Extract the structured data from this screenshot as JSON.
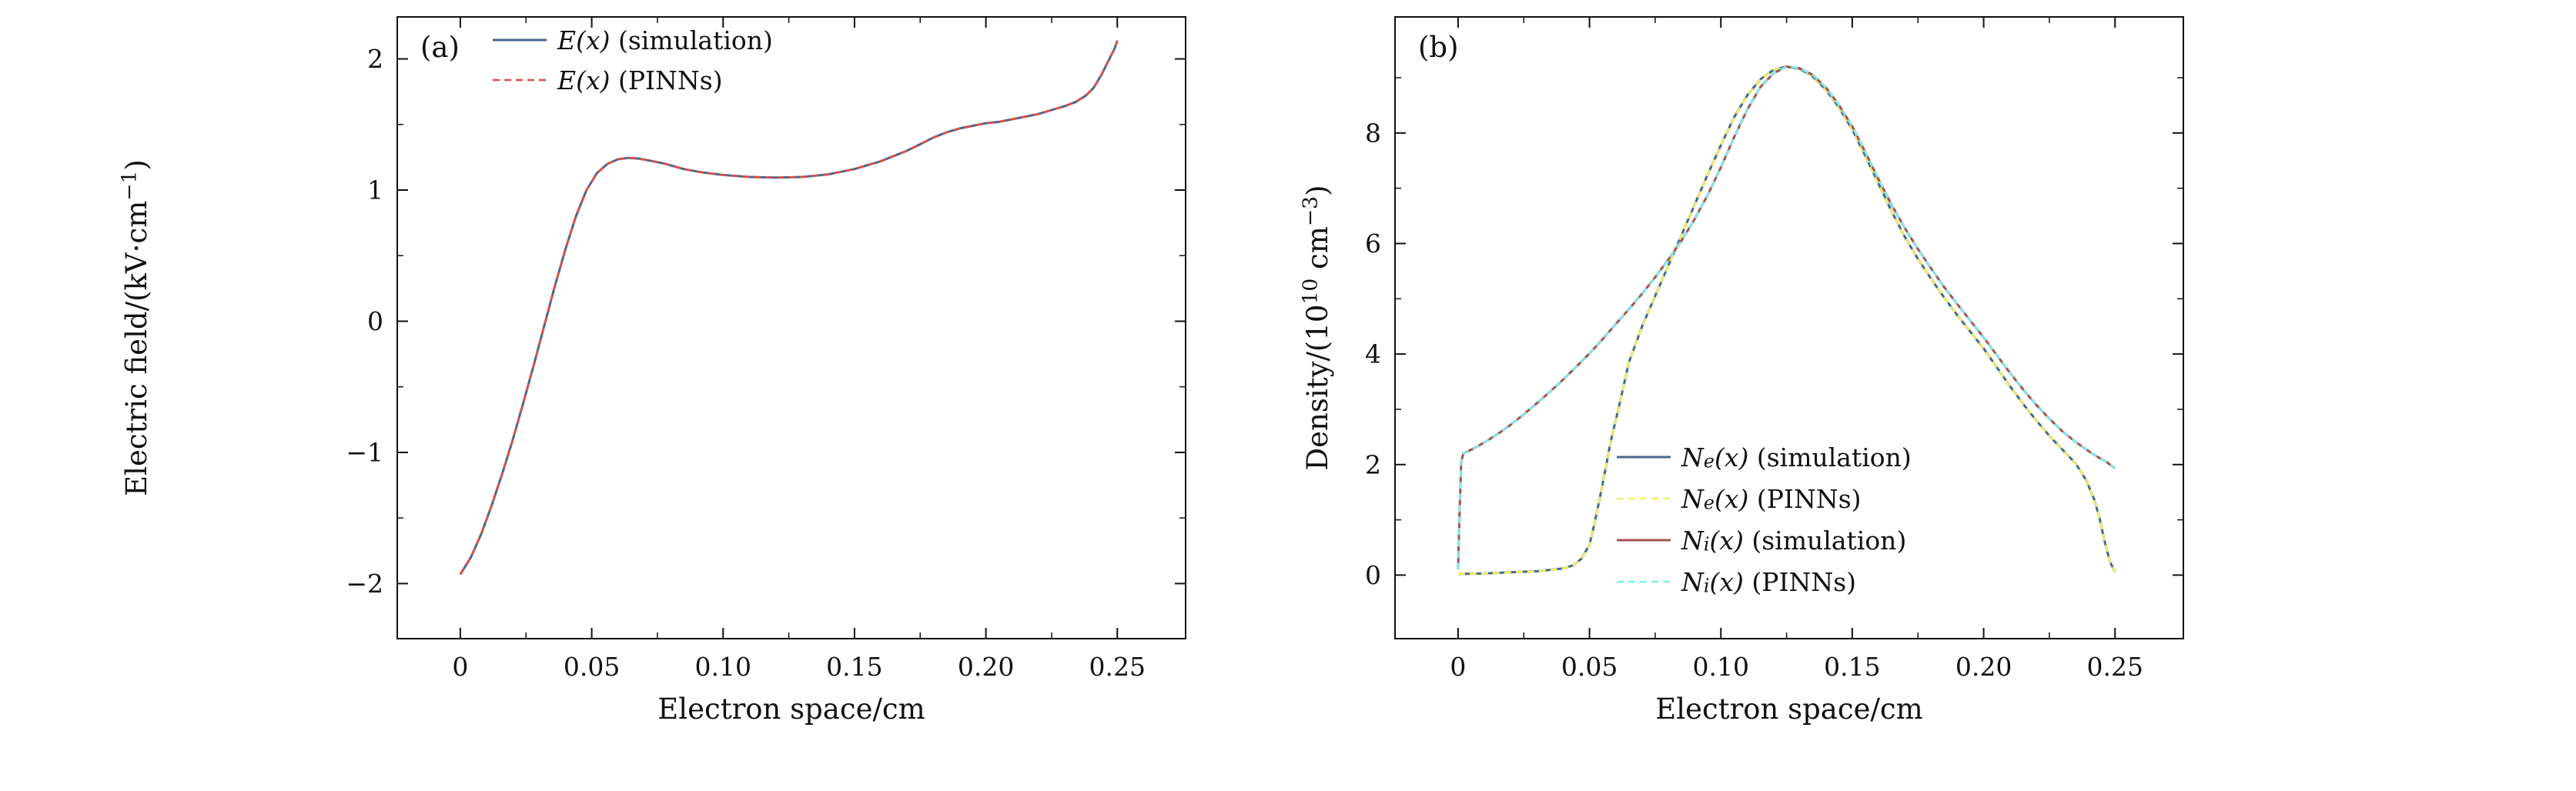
{
  "page": {
    "background": "#ffffff"
  },
  "chart_data": [
    {
      "type": "line",
      "panel_id": "a",
      "panel_label": "(a)",
      "title": "",
      "xlabel": "Electron space/cm",
      "ylabel": "Electric field/(kV·cm^{−1})",
      "xlim": [
        -0.024,
        0.276
      ],
      "ylim": [
        -2.42,
        2.32
      ],
      "grid": false,
      "legend_position": "upper-left-inside",
      "xticks": {
        "values": [
          0,
          0.05,
          0.1,
          0.15,
          0.2,
          0.25
        ],
        "labels": [
          "0",
          "0.05",
          "0.10",
          "0.15",
          "0.20",
          "0.25"
        ]
      },
      "yticks": {
        "values": [
          -2,
          -1,
          0,
          1,
          2
        ],
        "labels": [
          "−2",
          "−1",
          "0",
          "1",
          "2"
        ]
      },
      "xminor": [
        0.025,
        0.075,
        0.125,
        0.175,
        0.225
      ],
      "yminor": [
        -1.5,
        -0.5,
        0.5,
        1.5
      ],
      "series": [
        {
          "id": "e-simulation",
          "name_math": "E(x)",
          "name_text": "(simulation)",
          "color": "#46688b",
          "dash": null,
          "width": 3,
          "x": [
            0,
            0.004,
            0.008,
            0.012,
            0.016,
            0.02,
            0.024,
            0.028,
            0.032,
            0.036,
            0.04,
            0.044,
            0.048,
            0.052,
            0.056,
            0.06,
            0.064,
            0.068,
            0.072,
            0.078,
            0.085,
            0.092,
            0.1,
            0.11,
            0.12,
            0.13,
            0.14,
            0.15,
            0.155,
            0.16,
            0.165,
            0.17,
            0.175,
            0.18,
            0.185,
            0.19,
            0.195,
            0.2,
            0.205,
            0.21,
            0.215,
            0.22,
            0.225,
            0.23,
            0.234,
            0.238,
            0.241,
            0.244,
            0.247,
            0.249,
            0.25
          ],
          "y": [
            -1.93,
            -1.8,
            -1.62,
            -1.4,
            -1.16,
            -0.9,
            -0.62,
            -0.33,
            -0.03,
            0.27,
            0.55,
            0.8,
            1.0,
            1.13,
            1.2,
            1.235,
            1.245,
            1.24,
            1.225,
            1.2,
            1.16,
            1.135,
            1.115,
            1.1,
            1.095,
            1.1,
            1.12,
            1.16,
            1.19,
            1.22,
            1.26,
            1.3,
            1.35,
            1.4,
            1.44,
            1.47,
            1.49,
            1.51,
            1.52,
            1.54,
            1.56,
            1.58,
            1.61,
            1.64,
            1.67,
            1.72,
            1.78,
            1.88,
            2.0,
            2.08,
            2.14
          ]
        },
        {
          "id": "e-pinns",
          "name_math": "E(x)",
          "name_text": "(PINNs)",
          "color": "#df4e47",
          "dash": [
            9,
            6
          ],
          "width": 2.6,
          "same_as": 0
        }
      ]
    },
    {
      "type": "line",
      "panel_id": "b",
      "panel_label": "(b)",
      "title": "",
      "xlabel": "Electron space/cm",
      "ylabel": "Density/(10^{10} cm^{−3})",
      "xlim": [
        -0.024,
        0.276
      ],
      "ylim": [
        -1.15,
        10.1
      ],
      "grid": false,
      "legend_position": "center-lower-inside",
      "xticks": {
        "values": [
          0,
          0.05,
          0.1,
          0.15,
          0.2,
          0.25
        ],
        "labels": [
          "0",
          "0.05",
          "0.10",
          "0.15",
          "0.20",
          "0.25"
        ]
      },
      "yticks": {
        "values": [
          0,
          2,
          4,
          6,
          8
        ],
        "labels": [
          "0",
          "2",
          "4",
          "6",
          "8"
        ]
      },
      "xminor": [
        0.025,
        0.075,
        0.125,
        0.175,
        0.225
      ],
      "yminor": [
        1,
        3,
        5,
        7,
        9
      ],
      "series": [
        {
          "id": "ne-simulation",
          "name_math": "N_e(x)",
          "name_text": "(simulation)",
          "color": "#46688b",
          "dash": null,
          "width": 3,
          "x": [
            0,
            0.01,
            0.02,
            0.03,
            0.04,
            0.044,
            0.047,
            0.05,
            0.052,
            0.055,
            0.058,
            0.061,
            0.065,
            0.07,
            0.075,
            0.08,
            0.085,
            0.09,
            0.095,
            0.1,
            0.105,
            0.11,
            0.115,
            0.12,
            0.125,
            0.13,
            0.135,
            0.14,
            0.145,
            0.15,
            0.155,
            0.16,
            0.165,
            0.17,
            0.175,
            0.18,
            0.185,
            0.19,
            0.195,
            0.2,
            0.205,
            0.21,
            0.215,
            0.22,
            0.225,
            0.23,
            0.235,
            0.239,
            0.242,
            0.244,
            0.246,
            0.248,
            0.25
          ],
          "y": [
            0.02,
            0.03,
            0.05,
            0.07,
            0.12,
            0.18,
            0.3,
            0.55,
            0.95,
            1.65,
            2.4,
            3.0,
            3.85,
            4.5,
            5.05,
            5.6,
            6.15,
            6.7,
            7.25,
            7.78,
            8.28,
            8.68,
            8.97,
            9.14,
            9.2,
            9.16,
            9.02,
            8.78,
            8.46,
            8.06,
            7.58,
            7.08,
            6.58,
            6.12,
            5.72,
            5.36,
            5.02,
            4.7,
            4.4,
            4.1,
            3.76,
            3.42,
            3.1,
            2.8,
            2.52,
            2.27,
            2.02,
            1.72,
            1.38,
            1.05,
            0.62,
            0.25,
            0.05
          ]
        },
        {
          "id": "ne-pinns",
          "name_math": "N_e(x)",
          "name_text": "(PINNs)",
          "color": "#f5f163",
          "dash": [
            9,
            6
          ],
          "width": 2.6,
          "same_as": 0
        },
        {
          "id": "ni-simulation",
          "name_math": "N_i(x)",
          "name_text": "(simulation)",
          "color": "#a2544e",
          "dash": null,
          "width": 3,
          "x": [
            0,
            0.0006,
            0.0012,
            0.002,
            0.005,
            0.01,
            0.015,
            0.02,
            0.025,
            0.03,
            0.035,
            0.04,
            0.045,
            0.05,
            0.055,
            0.06,
            0.065,
            0.07,
            0.075,
            0.08,
            0.085,
            0.09,
            0.095,
            0.1,
            0.105,
            0.11,
            0.115,
            0.12,
            0.125,
            0.13,
            0.135,
            0.14,
            0.145,
            0.15,
            0.155,
            0.16,
            0.165,
            0.17,
            0.175,
            0.18,
            0.185,
            0.19,
            0.195,
            0.2,
            0.205,
            0.21,
            0.215,
            0.22,
            0.225,
            0.23,
            0.235,
            0.24,
            0.244,
            0.247,
            0.25
          ],
          "y": [
            0.1,
            1.2,
            2.05,
            2.2,
            2.27,
            2.4,
            2.55,
            2.72,
            2.91,
            3.11,
            3.32,
            3.54,
            3.77,
            4.01,
            4.27,
            4.54,
            4.81,
            5.09,
            5.39,
            5.71,
            6.05,
            6.44,
            6.88,
            7.38,
            7.92,
            8.42,
            8.83,
            9.08,
            9.2,
            9.17,
            9.05,
            8.82,
            8.5,
            8.12,
            7.65,
            7.16,
            6.7,
            6.28,
            5.9,
            5.55,
            5.21,
            4.9,
            4.6,
            4.3,
            3.98,
            3.66,
            3.36,
            3.08,
            2.83,
            2.6,
            2.41,
            2.24,
            2.12,
            2.04,
            1.93
          ]
        },
        {
          "id": "ni-pinns",
          "name_math": "N_i(x)",
          "name_text": "(PINNs)",
          "color": "#7ceef0",
          "dash": [
            9,
            6
          ],
          "width": 2.6,
          "same_as": 2
        }
      ]
    }
  ]
}
